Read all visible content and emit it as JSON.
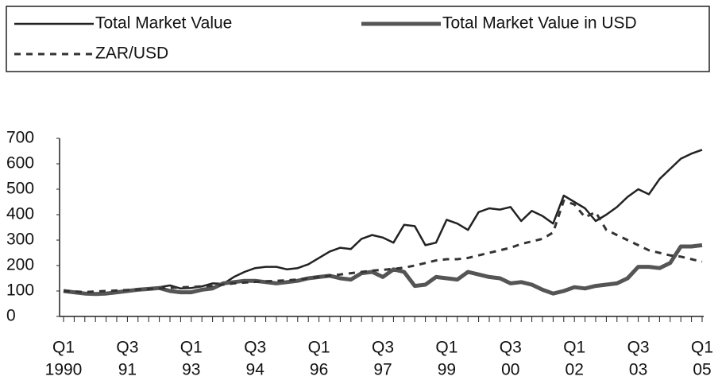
{
  "chart_data": {
    "type": "line",
    "categories": [
      [
        "Q1",
        "1990"
      ],
      null,
      null,
      null,
      null,
      null,
      [
        "Q3",
        "91"
      ],
      null,
      null,
      null,
      null,
      null,
      [
        "Q1",
        "93"
      ],
      null,
      null,
      null,
      null,
      null,
      [
        "Q3",
        "94"
      ],
      null,
      null,
      null,
      null,
      null,
      [
        "Q1",
        "96"
      ],
      null,
      null,
      null,
      null,
      null,
      [
        "Q3",
        "97"
      ],
      null,
      null,
      null,
      null,
      null,
      [
        "Q1",
        "99"
      ],
      null,
      null,
      null,
      null,
      null,
      [
        "Q3",
        "00"
      ],
      null,
      null,
      null,
      null,
      null,
      [
        "Q1",
        "02"
      ],
      null,
      null,
      null,
      null,
      null,
      [
        "Q3",
        "03"
      ],
      null,
      null,
      null,
      null,
      null,
      [
        "Q1",
        "05"
      ]
    ],
    "series": [
      {
        "name": "Total Market Value",
        "color": "#222222",
        "width": 2.5,
        "dash": "none",
        "values": [
          100,
          95,
          92,
          90,
          92,
          98,
          102,
          106,
          110,
          115,
          122,
          110,
          112,
          118,
          130,
          128,
          155,
          175,
          190,
          195,
          195,
          185,
          190,
          205,
          230,
          255,
          270,
          265,
          305,
          320,
          310,
          290,
          360,
          355,
          280,
          290,
          380,
          365,
          340,
          410,
          425,
          420,
          430,
          375,
          415,
          395,
          365,
          475,
          450,
          425,
          375,
          400,
          430,
          470,
          500,
          480,
          540,
          580,
          620,
          640,
          655
        ]
      },
      {
        "name": "Total Market Value in USD",
        "color": "#555555",
        "width": 5,
        "dash": "none",
        "values": [
          100,
          95,
          90,
          88,
          90,
          95,
          100,
          105,
          108,
          112,
          100,
          95,
          95,
          105,
          110,
          130,
          135,
          140,
          140,
          135,
          130,
          135,
          140,
          150,
          155,
          160,
          150,
          145,
          170,
          175,
          155,
          185,
          175,
          120,
          125,
          155,
          150,
          145,
          175,
          165,
          155,
          150,
          130,
          135,
          125,
          105,
          90,
          100,
          115,
          110,
          120,
          125,
          130,
          150,
          195,
          195,
          190,
          210,
          275,
          275,
          280
        ]
      },
      {
        "name": "ZAR/USD",
        "color": "#333333",
        "width": 3,
        "dash": "8 7",
        "values": [
          100,
          98,
          96,
          98,
          100,
          102,
          104,
          106,
          108,
          110,
          112,
          114,
          116,
          118,
          120,
          125,
          130,
          133,
          136,
          138,
          140,
          142,
          145,
          150,
          155,
          160,
          165,
          170,
          175,
          180,
          183,
          187,
          192,
          200,
          210,
          220,
          225,
          225,
          230,
          240,
          250,
          260,
          270,
          285,
          295,
          305,
          330,
          455,
          440,
          390,
          410,
          340,
          320,
          300,
          280,
          260,
          250,
          240,
          235,
          225,
          215
        ]
      }
    ],
    "ylim": [
      0,
      700
    ],
    "yticks": [
      0,
      100,
      200,
      300,
      400,
      500,
      600,
      700
    ],
    "grid": false
  }
}
